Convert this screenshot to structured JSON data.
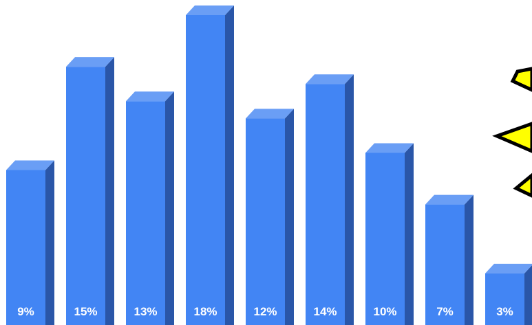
{
  "chart_data": {
    "type": "bar",
    "categories": [
      "9%",
      "15%",
      "13%",
      "18%",
      "12%",
      "14%",
      "10%",
      "7%",
      "3%"
    ],
    "values": [
      9,
      15,
      13,
      18,
      12,
      14,
      10,
      7,
      3
    ],
    "unit": "%",
    "title": "",
    "xlabel": "",
    "ylabel": "",
    "ylim": [
      0,
      18
    ],
    "grid": false,
    "legend": "none",
    "style": "3d-bars",
    "colors": {
      "front": "#4285f4",
      "side": "#2a56a8",
      "top": "#6a9ef5",
      "label": "#ffffff",
      "arrow_fill": "#ffff00",
      "arrow_stroke": "#000000"
    }
  },
  "decorations": {
    "arrows": [
      {
        "name": "arrow-upper",
        "direction": "left"
      },
      {
        "name": "arrow-middle",
        "direction": "left"
      },
      {
        "name": "arrow-lower",
        "direction": "left"
      }
    ]
  }
}
